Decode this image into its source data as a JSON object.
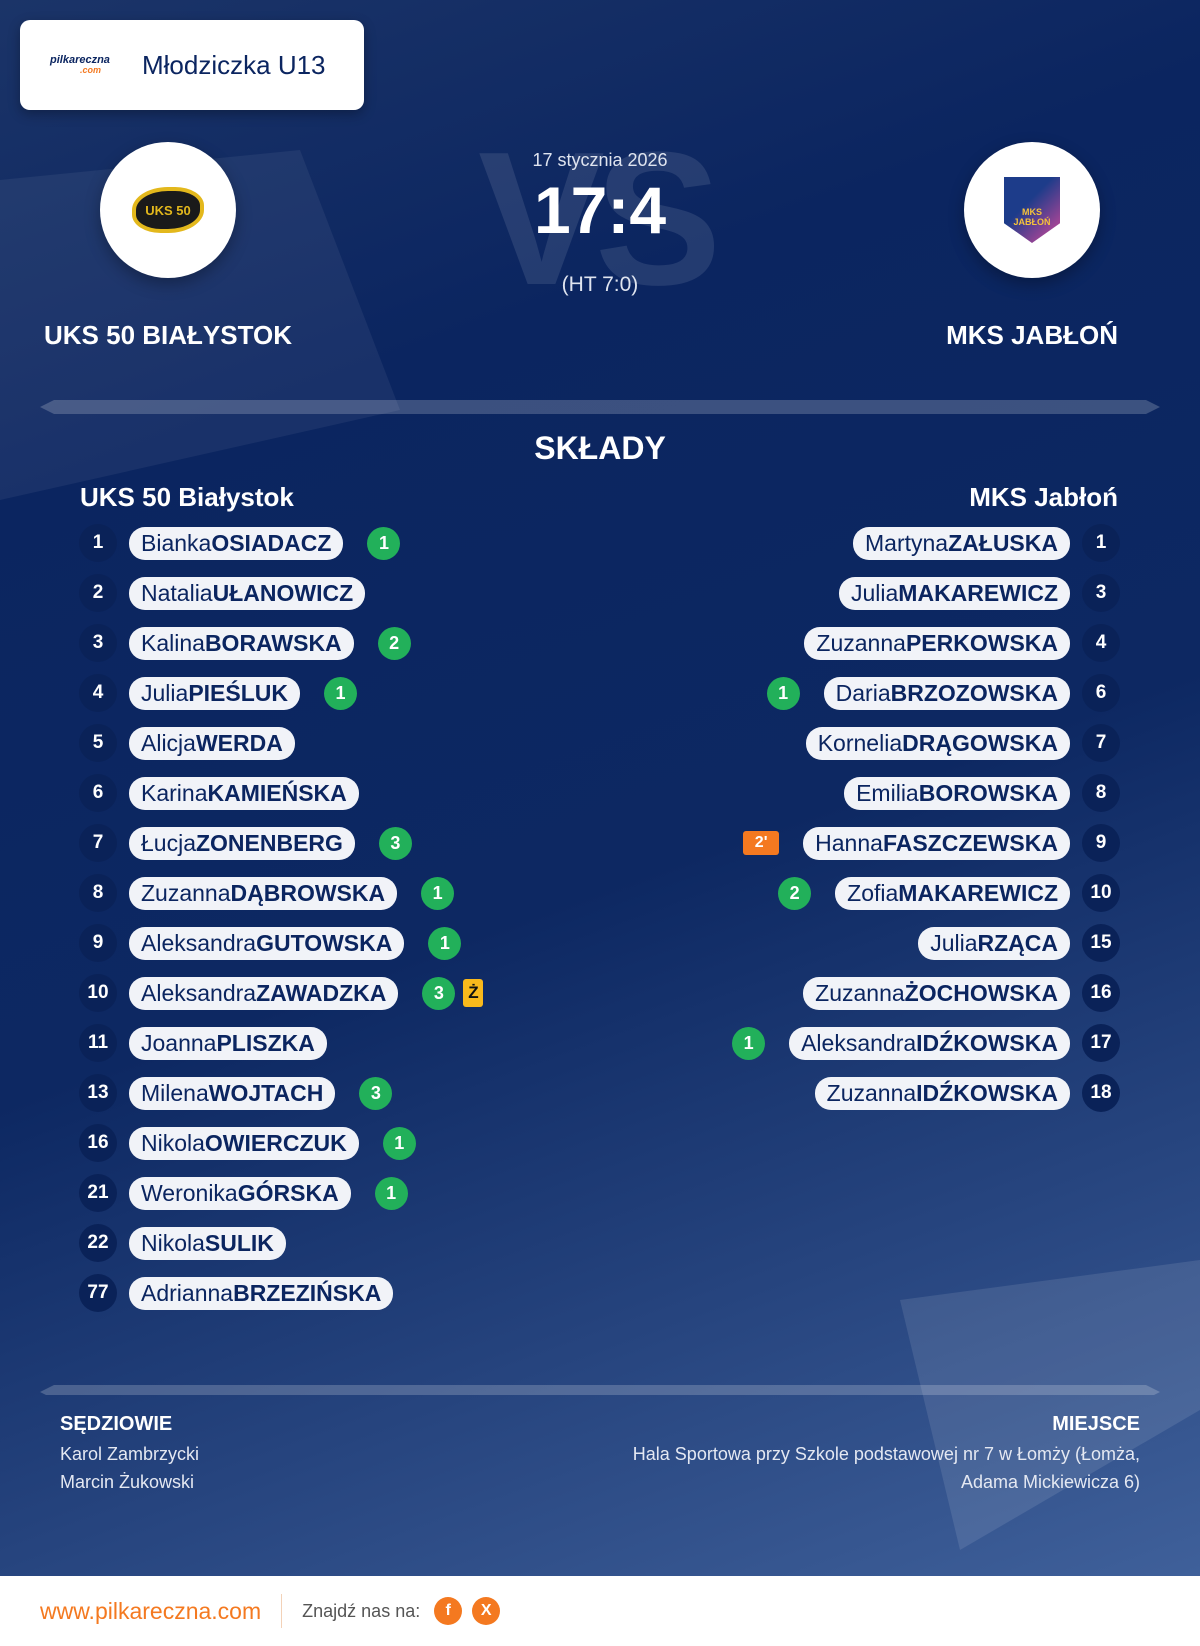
{
  "header": {
    "brand": "pilkareczna",
    "brand_suffix": ".com",
    "competition": "Młodziczka U13"
  },
  "match": {
    "date": "17 stycznia 2026",
    "score": "17:4",
    "halftime": "(HT 7:0)",
    "vs_watermark": "VS",
    "home": {
      "name": "UKS 50 BIAŁYSTOK",
      "logo": "UKS 50"
    },
    "away": {
      "name": "MKS JABŁOŃ",
      "logo": "MKS JABŁOŃ"
    }
  },
  "lineups": {
    "title": "SKŁADY",
    "home": {
      "team": "UKS 50 Białystok",
      "players": [
        {
          "number": "1",
          "first": "Bianka",
          "last": "OSIADACZ",
          "goals": "1"
        },
        {
          "number": "2",
          "first": "Natalia",
          "last": "UŁANOWICZ"
        },
        {
          "number": "3",
          "first": "Kalina",
          "last": "BORAWSKA",
          "goals": "2"
        },
        {
          "number": "4",
          "first": "Julia",
          "last": "PIEŚLUK",
          "goals": "1"
        },
        {
          "number": "5",
          "first": "Alicja",
          "last": "WERDA"
        },
        {
          "number": "6",
          "first": "Karina",
          "last": "KAMIEŃSKA"
        },
        {
          "number": "7",
          "first": "Łucja",
          "last": "ZONENBERG",
          "goals": "3"
        },
        {
          "number": "8",
          "first": "Zuzanna",
          "last": "DĄBROWSKA",
          "goals": "1"
        },
        {
          "number": "9",
          "first": "Aleksandra",
          "last": "GUTOWSKA",
          "goals": "1"
        },
        {
          "number": "10",
          "first": "Aleksandra",
          "last": "ZAWADZKA",
          "goals": "3",
          "card": "Ż"
        },
        {
          "number": "11",
          "first": "Joanna",
          "last": "PLISZKA"
        },
        {
          "number": "13",
          "first": "Milena",
          "last": "WOJTACH",
          "goals": "3"
        },
        {
          "number": "16",
          "first": "Nikola",
          "last": "OWIERCZUK",
          "goals": "1"
        },
        {
          "number": "21",
          "first": "Weronika",
          "last": "GÓRSKA",
          "goals": "1"
        },
        {
          "number": "22",
          "first": "Nikola",
          "last": "SULIK"
        },
        {
          "number": "77",
          "first": "Adrianna",
          "last": "BRZEZIŃSKA"
        }
      ]
    },
    "away": {
      "team": "MKS Jabłoń",
      "players": [
        {
          "number": "1",
          "first": "Martyna",
          "last": "ZAŁUSKA"
        },
        {
          "number": "3",
          "first": "Julia",
          "last": "MAKAREWICZ"
        },
        {
          "number": "4",
          "first": "Zuzanna",
          "last": "PERKOWSKA"
        },
        {
          "number": "6",
          "first": "Daria",
          "last": "BRZOZOWSKA",
          "goals": "1"
        },
        {
          "number": "7",
          "first": "Kornelia",
          "last": "DRĄGOWSKA"
        },
        {
          "number": "8",
          "first": "Emilia",
          "last": "BOROWSKA"
        },
        {
          "number": "9",
          "first": "Hanna",
          "last": "FASZCZEWSKA",
          "suspension": "2'"
        },
        {
          "number": "10",
          "first": "Zofia",
          "last": "MAKAREWICZ",
          "goals": "2"
        },
        {
          "number": "15",
          "first": "Julia",
          "last": "RZĄCA"
        },
        {
          "number": "16",
          "first": "Zuzanna",
          "last": "ŻOCHOWSKA"
        },
        {
          "number": "17",
          "first": "Aleksandra",
          "last": "IDŹKOWSKA",
          "goals": "1"
        },
        {
          "number": "18",
          "first": "Zuzanna",
          "last": "IDŹKOWSKA"
        }
      ]
    }
  },
  "officials": {
    "label": "SĘDZIOWIE",
    "names": [
      "Karol Zambrzycki",
      "Marcin Żukowski"
    ]
  },
  "venue": {
    "label": "MIEJSCE",
    "line1": "Hala Sportowa przy Szkole podstawowej nr 7 w Łomży (Łomża,",
    "line2": "Adama Mickiewicza 6)"
  },
  "footer": {
    "url": "www.pilkareczna.com",
    "find_us": "Znajdź nas na:",
    "facebook": "f",
    "x": "X"
  },
  "colors": {
    "navy": "#0b2560",
    "goal": "#22b05a",
    "yellow_card": "#f9b91c",
    "suspension": "#f47920",
    "brand": "#f47920"
  }
}
